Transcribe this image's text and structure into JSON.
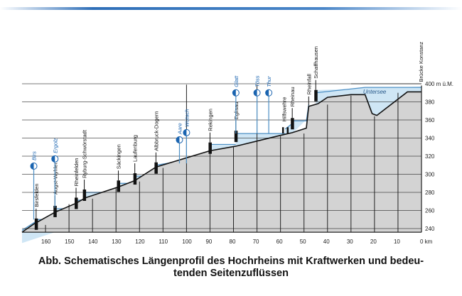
{
  "chart_data": {
    "type": "profile",
    "title": "Abb. Schematisches Längenprofil des Hochrheins mit Kraftwerken und bedeu-tenden Seitenzuflüssen",
    "title_lines": [
      "Abb. Schematisches Längenprofil des Hochrheins mit Kraftwerken und bedeu-",
      "tenden Seitenzuflüssen"
    ],
    "xlabel": "km",
    "ylabel": "m ü.M.",
    "xlim": [
      170,
      0
    ],
    "ylim": [
      236,
      400
    ],
    "x_ticks": [
      "160",
      "150",
      "140",
      "130",
      "120",
      "110",
      "100",
      "90",
      "80",
      "70",
      "60",
      "50",
      "40",
      "30",
      "20",
      "10",
      "0 km"
    ],
    "x_tick_values": [
      160,
      150,
      140,
      130,
      120,
      110,
      100,
      90,
      80,
      70,
      60,
      50,
      40,
      30,
      20,
      10,
      0
    ],
    "y_ticks": [
      "400 m ü.M.",
      "380",
      "360",
      "340",
      "320",
      "300",
      "280",
      "260",
      "240"
    ],
    "y_tick_values": [
      400,
      380,
      360,
      340,
      320,
      300,
      280,
      260,
      240
    ],
    "ground": [
      [
        170,
        236
      ],
      [
        165,
        245
      ],
      [
        156,
        258
      ],
      [
        147,
        268
      ],
      [
        143,
        274
      ],
      [
        129,
        286
      ],
      [
        122,
        293
      ],
      [
        113,
        308
      ],
      [
        90,
        326
      ],
      [
        79,
        331
      ],
      [
        60,
        343
      ],
      [
        55,
        346
      ],
      [
        49,
        351
      ],
      [
        48,
        375
      ],
      [
        44,
        378
      ],
      [
        40,
        385
      ],
      [
        30,
        388
      ],
      [
        24,
        388
      ],
      [
        21,
        367
      ],
      [
        19,
        365
      ],
      [
        6,
        391
      ],
      [
        0,
        391
      ]
    ],
    "water": [
      [
        [
          170,
          238
        ],
        [
          164,
          248
        ],
        [
          164,
          250
        ],
        [
          156,
          250
        ]
      ],
      [
        [
          156,
          262
        ],
        [
          147,
          262
        ]
      ],
      [
        [
          147,
          271
        ],
        [
          143.5,
          272
        ]
      ],
      [
        [
          143.5,
          280
        ],
        [
          129,
          280
        ]
      ],
      [
        [
          129,
          290
        ],
        [
          122,
          290
        ]
      ],
      [
        [
          122,
          298
        ],
        [
          113,
          298
        ]
      ],
      [
        [
          113,
          310
        ],
        [
          90,
          320
        ]
      ],
      [
        [
          90,
          333
        ],
        [
          79,
          333
        ]
      ],
      [
        [
          79,
          345
        ],
        [
          58,
          345
        ]
      ],
      [
        [
          58,
          350
        ],
        [
          55,
          356
        ]
      ],
      [
        [
          55,
          359
        ],
        [
          49,
          359
        ],
        [
          48,
          377
        ]
      ],
      [
        [
          45,
          390
        ],
        [
          24,
          396
        ],
        [
          0,
          396
        ]
      ]
    ],
    "plants": [
      {
        "km": 164,
        "m": 248,
        "label": "Birsfelden"
      },
      {
        "km": 156,
        "m": 262,
        "label": "Augst-Wyhlen"
      },
      {
        "km": 147,
        "m": 271,
        "label": "Rheinfelden"
      },
      {
        "km": 143.5,
        "m": 280,
        "label": "Ryburg-Schwörstadt"
      },
      {
        "km": 129,
        "m": 290,
        "label": "Säckingen"
      },
      {
        "km": 122,
        "m": 298,
        "label": "Laufenburg"
      },
      {
        "km": 113,
        "m": 310,
        "label": "Albbruck-Dogern"
      },
      {
        "km": 90,
        "m": 332,
        "label": "Rekingen"
      },
      {
        "km": 79,
        "m": 345,
        "label": "Eglisau"
      },
      {
        "km": 55,
        "m": 359,
        "label": "Rheinau"
      },
      {
        "km": 45,
        "m": 390,
        "label": "Schaffhausen"
      }
    ],
    "weirs": {
      "label": "Hilfswehre",
      "km": [
        59,
        57
      ]
    },
    "rheinfall": {
      "km": 48,
      "label": "Rheinfall"
    },
    "tributaries": [
      {
        "km": 165,
        "m": 309,
        "label": "Birs"
      },
      {
        "km": 156,
        "m": 317,
        "label": "Ergolz"
      },
      {
        "km": 103,
        "m": 338,
        "label": "Aare"
      },
      {
        "km": 100,
        "m": 346,
        "label": "Wutach"
      },
      {
        "km": 79,
        "m": 390,
        "label": "Glatt"
      },
      {
        "km": 70,
        "m": 390,
        "label": "Töss"
      },
      {
        "km": 65,
        "m": 390,
        "label": "Thur"
      }
    ],
    "lake": {
      "label": "Untersee",
      "km": 20,
      "m": 392
    },
    "bridge": {
      "label": "Brücke Konstanz",
      "km": 0
    }
  },
  "colors": {
    "ground": "#d3d3d3",
    "water": "#cfe6f5",
    "waterline": "#4d8fc4",
    "accent": "#1a64b0"
  }
}
